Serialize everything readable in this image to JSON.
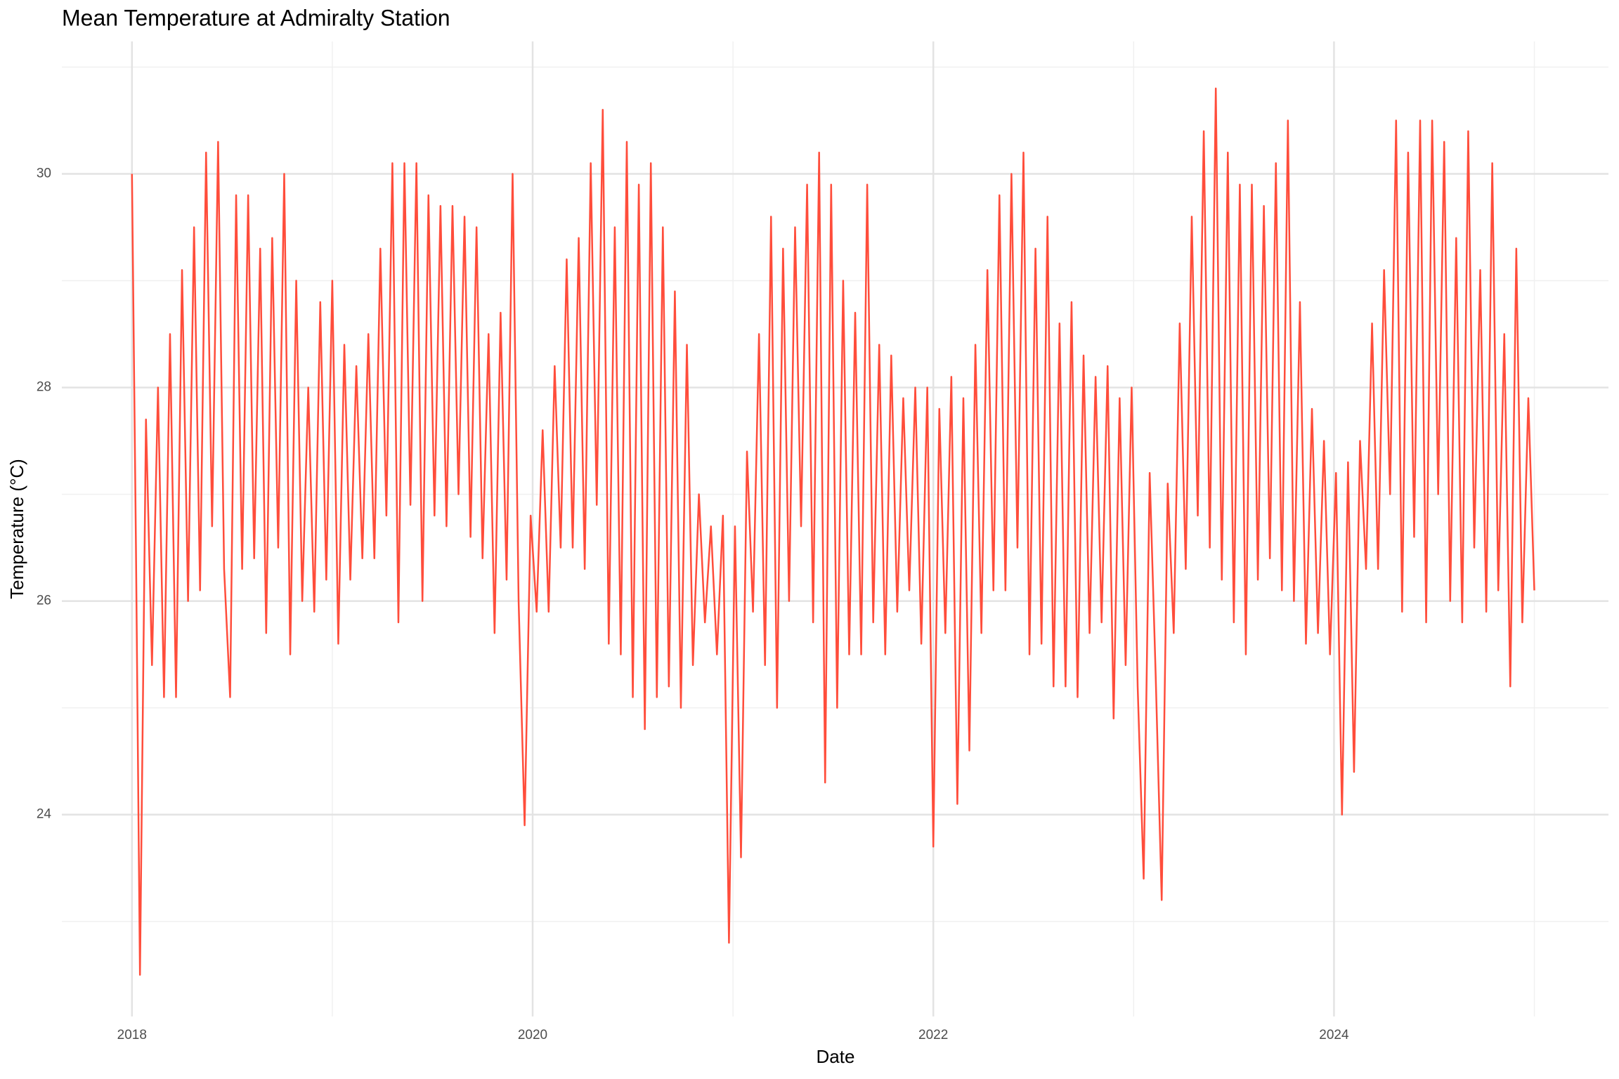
{
  "chart_data": {
    "type": "line",
    "title": "Mean Temperature at Admiralty Station",
    "x_label": "Date",
    "y_label": "Temperature (°C)",
    "color": "#ff4d3b",
    "xlim": [
      2017.65,
      2025.37
    ],
    "xticks": [
      2018,
      2020,
      2022,
      2024
    ],
    "xgrid_minor": [
      2019,
      2021,
      2023,
      2025
    ],
    "ylim": [
      22.11,
      31.24
    ],
    "yticks": [
      24,
      26,
      28,
      30
    ],
    "ygrid_minor": [
      23,
      25,
      27,
      29,
      31
    ],
    "grid": true,
    "x": [
      2018.0,
      2018.02,
      2018.04,
      2018.07,
      2018.1,
      2018.13,
      2018.16,
      2018.19,
      2018.22,
      2018.25,
      2018.28,
      2018.31,
      2018.34,
      2018.37,
      2018.4,
      2018.43,
      2018.46,
      2018.49,
      2018.52,
      2018.55,
      2018.58,
      2018.61,
      2018.64,
      2018.67,
      2018.7,
      2018.73,
      2018.76,
      2018.79,
      2018.82,
      2018.85,
      2018.88,
      2018.91,
      2018.94,
      2018.97,
      2019.0,
      2019.03,
      2019.06,
      2019.09,
      2019.12,
      2019.15,
      2019.18,
      2019.21,
      2019.24,
      2019.27,
      2019.3,
      2019.33,
      2019.36,
      2019.39,
      2019.42,
      2019.45,
      2019.48,
      2019.51,
      2019.54,
      2019.57,
      2019.6,
      2019.63,
      2019.66,
      2019.69,
      2019.72,
      2019.75,
      2019.78,
      2019.81,
      2019.84,
      2019.87,
      2019.9,
      2019.93,
      2019.96,
      2019.99,
      2020.02,
      2020.05,
      2020.08,
      2020.11,
      2020.14,
      2020.17,
      2020.2,
      2020.23,
      2020.26,
      2020.29,
      2020.32,
      2020.35,
      2020.38,
      2020.41,
      2020.44,
      2020.47,
      2020.5,
      2020.53,
      2020.56,
      2020.59,
      2020.62,
      2020.65,
      2020.68,
      2020.71,
      2020.74,
      2020.77,
      2020.8,
      2020.83,
      2020.86,
      2020.89,
      2020.92,
      2020.95,
      2020.98,
      2021.01,
      2021.04,
      2021.07,
      2021.1,
      2021.13,
      2021.16,
      2021.19,
      2021.22,
      2021.25,
      2021.28,
      2021.31,
      2021.34,
      2021.37,
      2021.4,
      2021.43,
      2021.46,
      2021.49,
      2021.52,
      2021.55,
      2021.58,
      2021.61,
      2021.64,
      2021.67,
      2021.7,
      2021.73,
      2021.76,
      2021.79,
      2021.82,
      2021.85,
      2021.88,
      2021.91,
      2021.94,
      2021.97,
      2022.0,
      2022.03,
      2022.06,
      2022.09,
      2022.12,
      2022.15,
      2022.18,
      2022.21,
      2022.24,
      2022.27,
      2022.3,
      2022.33,
      2022.36,
      2022.39,
      2022.42,
      2022.45,
      2022.48,
      2022.51,
      2022.54,
      2022.57,
      2022.6,
      2022.63,
      2022.66,
      2022.69,
      2022.72,
      2022.75,
      2022.78,
      2022.81,
      2022.84,
      2022.87,
      2022.9,
      2022.93,
      2022.96,
      2022.99,
      2023.02,
      2023.05,
      2023.08,
      2023.11,
      2023.14,
      2023.17,
      2023.2,
      2023.23,
      2023.26,
      2023.29,
      2023.32,
      2023.35,
      2023.38,
      2023.41,
      2023.44,
      2023.47,
      2023.5,
      2023.53,
      2023.56,
      2023.59,
      2023.62,
      2023.65,
      2023.68,
      2023.71,
      2023.74,
      2023.77,
      2023.8,
      2023.83,
      2023.86,
      2023.89,
      2023.92,
      2023.95,
      2023.98,
      2024.01,
      2024.04,
      2024.07,
      2024.1,
      2024.13,
      2024.16,
      2024.19,
      2024.22,
      2024.25,
      2024.28,
      2024.31,
      2024.34,
      2024.37,
      2024.4,
      2024.43,
      2024.46,
      2024.49,
      2024.52,
      2024.55,
      2024.58,
      2024.61,
      2024.64,
      2024.67,
      2024.7,
      2024.73,
      2024.76,
      2024.79,
      2024.82,
      2024.85,
      2024.88,
      2024.91,
      2024.94,
      2024.97,
      2025.0
    ],
    "values": [
      30.0,
      26.5,
      22.5,
      27.7,
      25.4,
      28.0,
      25.1,
      28.5,
      25.1,
      29.1,
      26.0,
      29.5,
      26.1,
      30.2,
      26.7,
      30.3,
      26.3,
      25.1,
      29.8,
      26.3,
      29.8,
      26.4,
      29.3,
      25.7,
      29.4,
      26.5,
      30.0,
      25.5,
      29.0,
      26.0,
      28.0,
      25.9,
      28.8,
      26.2,
      29.0,
      25.6,
      28.4,
      26.2,
      28.2,
      26.4,
      28.5,
      26.4,
      29.3,
      26.8,
      30.1,
      25.8,
      30.1,
      26.9,
      30.1,
      26.0,
      29.8,
      26.8,
      29.7,
      26.7,
      29.7,
      27.0,
      29.6,
      26.6,
      29.5,
      26.4,
      28.5,
      25.7,
      28.7,
      26.2,
      30.0,
      26.0,
      23.9,
      26.8,
      25.9,
      27.6,
      25.9,
      28.2,
      26.5,
      29.2,
      26.5,
      29.4,
      26.3,
      30.1,
      26.9,
      30.6,
      25.6,
      29.5,
      25.5,
      30.3,
      25.1,
      29.9,
      24.8,
      30.1,
      25.1,
      29.5,
      25.2,
      28.9,
      25.0,
      28.4,
      25.4,
      27.0,
      25.8,
      26.7,
      25.5,
      26.8,
      22.8,
      26.7,
      23.6,
      27.4,
      25.9,
      28.5,
      25.4,
      29.6,
      25.0,
      29.3,
      26.0,
      29.5,
      26.7,
      29.9,
      25.8,
      30.2,
      24.3,
      29.9,
      25.0,
      29.0,
      25.5,
      28.7,
      25.5,
      29.9,
      25.8,
      28.4,
      25.5,
      28.3,
      25.9,
      27.9,
      26.1,
      28.0,
      25.6,
      28.0,
      23.7,
      27.8,
      25.7,
      28.1,
      24.1,
      27.9,
      24.6,
      28.4,
      25.7,
      29.1,
      26.1,
      29.8,
      26.1,
      30.0,
      26.5,
      30.2,
      25.5,
      29.3,
      25.6,
      29.6,
      25.2,
      28.6,
      25.2,
      28.8,
      25.1,
      28.3,
      25.7,
      28.1,
      25.8,
      28.2,
      24.9,
      27.9,
      25.4,
      28.0,
      25.2,
      23.4,
      27.2,
      25.3,
      23.2,
      27.1,
      25.7,
      28.6,
      26.3,
      29.6,
      26.8,
      30.4,
      26.5,
      30.8,
      26.2,
      30.2,
      25.8,
      29.9,
      25.5,
      29.9,
      26.2,
      29.7,
      26.4,
      30.1,
      26.1,
      30.5,
      26.0,
      28.8,
      25.6,
      27.8,
      25.7,
      27.5,
      25.5,
      27.2,
      24.0,
      27.3,
      24.4,
      27.5,
      26.3,
      28.6,
      26.3,
      29.1,
      27.0,
      30.5,
      25.9,
      30.2,
      26.6,
      30.5,
      25.8,
      30.5,
      27.0,
      30.3,
      26.0,
      29.4,
      25.8,
      30.4,
      26.5,
      29.1,
      25.9,
      30.1,
      26.1,
      28.5,
      25.2,
      29.3,
      25.8,
      27.9,
      26.1
    ]
  }
}
